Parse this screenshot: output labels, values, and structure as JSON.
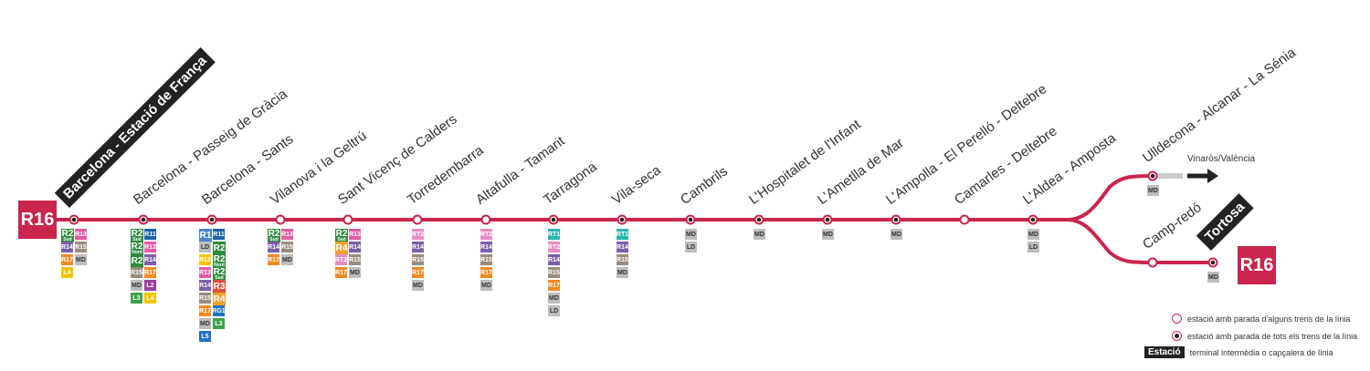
{
  "line": {
    "name": "R16",
    "color": "#c9254d"
  },
  "stations": [
    {
      "name": "Barcelona - Estació de França",
      "terminus": true,
      "stop": "all",
      "connections": [
        "R2 Sud",
        "R13",
        "R14",
        "R15",
        "R17",
        "MD",
        "L4"
      ]
    },
    {
      "name": "Barcelona - Passeig de Gràcia",
      "stop": "all",
      "connections": [
        "R2 Sud",
        "R11",
        "R2 Nord",
        "R13",
        "R2",
        "R14",
        "R15",
        "R17",
        "MD",
        "L2",
        "L3",
        "L4"
      ]
    },
    {
      "name": "Barcelona - Sants",
      "stop": "all",
      "connections": [
        "R1",
        "R11",
        "LD",
        "R2",
        "R12",
        "R2 Nord",
        "R13",
        "R2 Sud",
        "R14",
        "R3",
        "R15",
        "R4",
        "R17",
        "RG1",
        "MD",
        "L3",
        "L5"
      ]
    },
    {
      "name": "Vilanova i la Geltrú",
      "stop": "partial",
      "connections": [
        "R2 Sud",
        "R13",
        "R14",
        "R15",
        "R17",
        "MD"
      ]
    },
    {
      "name": "Sant Vicenç de Calders",
      "stop": "partial",
      "connections": [
        "R2 Sud",
        "R13",
        "R4",
        "R14",
        "RT2",
        "R15",
        "R17",
        "MD"
      ]
    },
    {
      "name": "Torredembarra",
      "stop": "partial",
      "connections": [
        "RT2",
        "R14",
        "R15",
        "R17",
        "MD"
      ]
    },
    {
      "name": "Altafulla - Tamarit",
      "stop": "partial",
      "connections": [
        "RT2",
        "R14",
        "R15",
        "R17",
        "MD"
      ]
    },
    {
      "name": "Tarragona",
      "stop": "all",
      "connections": [
        "RT1",
        "RT2",
        "R14",
        "R15",
        "R17",
        "MD",
        "LD"
      ]
    },
    {
      "name": "Vila-seca",
      "stop": "all",
      "connections": [
        "RT1",
        "R14",
        "R15",
        "MD"
      ]
    },
    {
      "name": "Cambrils",
      "stop": "all",
      "connections": [
        "MD",
        "LD"
      ]
    },
    {
      "name": "L'Hospitalet de l'Infant",
      "stop": "all",
      "connections": [
        "MD"
      ]
    },
    {
      "name": "L'Ametlla de Mar",
      "stop": "all",
      "connections": [
        "MD"
      ]
    },
    {
      "name": "L'Ampolla - El Perelló - Deltebre",
      "stop": "all",
      "connections": [
        "MD"
      ]
    },
    {
      "name": "Camarles - Deltebre",
      "stop": "partial",
      "connections": []
    },
    {
      "name": "L'Aldea - Amposta",
      "stop": "all",
      "connections": [
        "MD",
        "LD"
      ]
    },
    {
      "name": "Ulldecona - Alcanar - La Sénia",
      "stop": "all",
      "connections": [
        "MD"
      ]
    },
    {
      "name": "Camp-redó",
      "stop": "partial",
      "connections": []
    },
    {
      "name": "Tortosa",
      "terminus": true,
      "stop": "all",
      "connections": [
        "MD"
      ]
    }
  ],
  "branch": {
    "label": "Vinaròs/València"
  },
  "legend": [
    {
      "kind": "partial",
      "text": "estació amb parada d'alguns trens de la línia"
    },
    {
      "kind": "all",
      "text": "estació amb parada de tots els trens de la línia"
    },
    {
      "kind": "terminus",
      "tag": "Estació",
      "text": "terminal intermèdia o capçalera de línia"
    }
  ],
  "colors": {
    "R1": "#4a86c8",
    "R2": "#2e8b3c",
    "R3": "#e1503b",
    "R4": "#f0a030",
    "R11": "#1a62a8",
    "R12": "#f2c500",
    "R13": "#e45aa5",
    "R14": "#7b5ea7",
    "R15": "#978c7e",
    "R17": "#f08a24",
    "RT1": "#2bb3b1",
    "RT2": "#e88cc4",
    "RG1": "#1f74c0",
    "MD": "#bdbdbd",
    "LD": "#bdbdbd",
    "L2": "#9b3fa1",
    "L3": "#3ea34a",
    "L4": "#f4c400",
    "L5": "#1f74c0"
  }
}
